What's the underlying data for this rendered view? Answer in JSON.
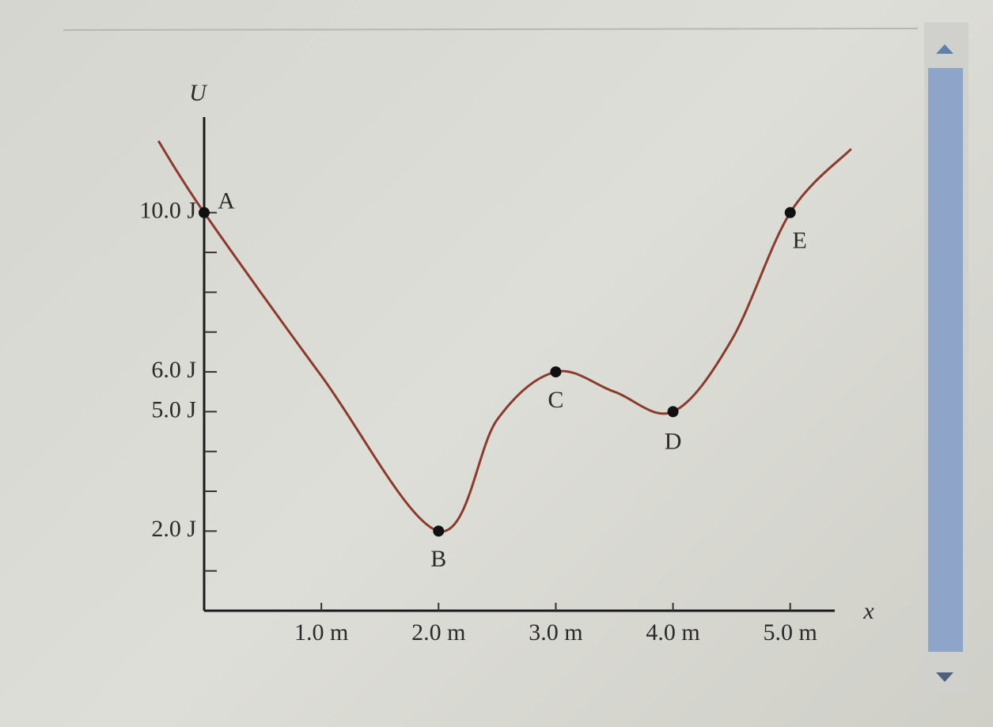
{
  "chart_data": {
    "type": "line",
    "x_label": "x",
    "y_label": "U",
    "xlim": [
      0,
      5.38
    ],
    "ylim": [
      0,
      12.4
    ],
    "xticks": [
      {
        "value": 1,
        "label": "1.0 m"
      },
      {
        "value": 2,
        "label": "2.0 m"
      },
      {
        "value": 3,
        "label": "3.0 m"
      },
      {
        "value": 4,
        "label": "4.0 m"
      },
      {
        "value": 5,
        "label": "5.0 m"
      }
    ],
    "yticks": [
      {
        "value": 2,
        "label": "2.0 J"
      },
      {
        "value": 5,
        "label": "5.0 J"
      },
      {
        "value": 6,
        "label": "6.0 J"
      },
      {
        "value": 10,
        "label": "10.0 J"
      }
    ],
    "yminor_ticks": [
      1,
      3,
      4,
      7,
      8,
      9
    ],
    "series": [
      {
        "color": "#8b3b2b",
        "x": [
          -0.39,
          0,
          1,
          2,
          2.5,
          3,
          3.5,
          4,
          4.5,
          5,
          5.52
        ],
        "values": [
          11.8,
          10,
          5.9,
          2,
          4.8,
          6,
          5.5,
          5,
          6.8,
          10,
          11.6
        ]
      }
    ],
    "points": [
      {
        "label": "A",
        "x": 0,
        "y": 10
      },
      {
        "label": "B",
        "x": 2,
        "y": 2
      },
      {
        "label": "C",
        "x": 3,
        "y": 6
      },
      {
        "label": "D",
        "x": 4,
        "y": 5
      },
      {
        "label": "E",
        "x": 5,
        "y": 10
      }
    ]
  }
}
